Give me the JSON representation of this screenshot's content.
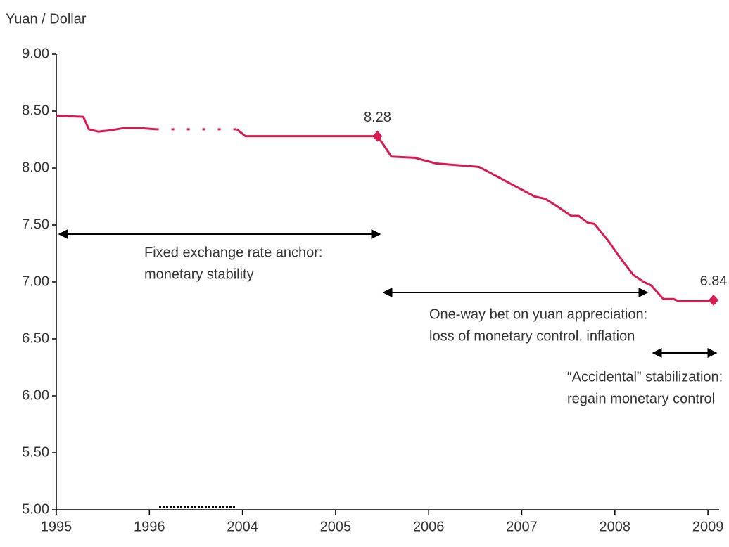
{
  "chart_data": {
    "type": "line",
    "ylabel": "Yuan / Dollar",
    "color": "#d81b4f",
    "xlim": [
      0,
      7.1
    ],
    "ylim": [
      5,
      9
    ],
    "xticks": [
      {
        "value": 0,
        "label": "1995"
      },
      {
        "value": 1,
        "label": "1996"
      },
      {
        "value": 2,
        "label": "2004"
      },
      {
        "value": 3,
        "label": "2005"
      },
      {
        "value": 4,
        "label": "2006"
      },
      {
        "value": 5,
        "label": "2007"
      },
      {
        "value": 6,
        "label": "2008"
      },
      {
        "value": 7,
        "label": "2009"
      }
    ],
    "yticks": [
      {
        "value": 9,
        "label": "9.00"
      },
      {
        "value": 8.5,
        "label": "8.50"
      },
      {
        "value": 8,
        "label": "8.00"
      },
      {
        "value": 7.5,
        "label": "7.50"
      },
      {
        "value": 7,
        "label": "7.00"
      },
      {
        "value": 6.5,
        "label": "6.50"
      },
      {
        "value": 6,
        "label": "6.00"
      },
      {
        "value": 5.5,
        "label": "5.50"
      },
      {
        "value": 5,
        "label": "5.00"
      }
    ],
    "x": [
      0,
      0.29,
      0.35,
      0.45,
      0.57,
      0.72,
      0.91,
      1.07,
      1.5,
      1.94,
      2.03,
      3.45,
      3.51,
      3.6,
      3.85,
      4.08,
      4.54,
      4.61,
      4.84,
      5.14,
      5.25,
      5.37,
      5.53,
      5.61,
      5.71,
      5.78,
      5.93,
      6.05,
      6.2,
      6.31,
      6.39,
      6.52,
      6.63,
      6.69,
      6.95,
      7.06
    ],
    "values": [
      8.46,
      8.45,
      8.34,
      8.32,
      8.33,
      8.35,
      8.35,
      8.34,
      null,
      8.34,
      8.28,
      8.28,
      8.21,
      8.1,
      8.09,
      8.04,
      8.01,
      7.98,
      7.88,
      7.75,
      7.73,
      7.67,
      7.58,
      7.58,
      7.52,
      7.51,
      7.36,
      7.22,
      7.06,
      7.0,
      6.97,
      6.85,
      6.85,
      6.83,
      6.83,
      6.84
    ],
    "dashed": {
      "x": [
        1.07,
        1.94
      ],
      "values": [
        8.34,
        8.34
      ]
    },
    "markers": {
      "x": [
        3.45,
        7.06
      ],
      "values": [
        8.28,
        6.84
      ]
    },
    "annotations": [
      {
        "lines": [
          "Fixed exchange rate anchor:",
          "monetary stability"
        ]
      },
      {
        "lines": [
          "One-way bet on yuan appreciation:",
          "loss of monetary control, inflation"
        ]
      },
      {
        "lines": [
          "“Accidental” stabilization:",
          "regain monetary control"
        ]
      }
    ]
  }
}
